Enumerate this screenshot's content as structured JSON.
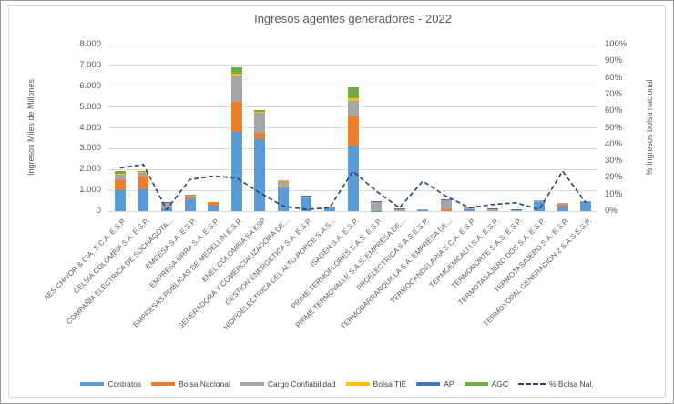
{
  "chart_data": {
    "type": "bar",
    "subtype": "stacked-column-with-line",
    "title": "Ingresos agentes generadores - 2022",
    "grid": "horizontal",
    "legend_position": "bottom",
    "y_left": {
      "label": "Ingresos Miles de Millones",
      "min": 0,
      "max": 8000,
      "ticks": [
        "8.000",
        "7.000",
        "6.000",
        "5.000",
        "4.000",
        "3.000",
        "2.000",
        "1.000",
        "0"
      ]
    },
    "y_right": {
      "label": "% Ingresos bolsa nacional",
      "min": 0,
      "max": 100,
      "ticks": [
        "100%",
        "90%",
        "80%",
        "70%",
        "60%",
        "50%",
        "40%",
        "30%",
        "20%",
        "10%",
        "0%"
      ]
    },
    "categories": [
      "AES CHIVOR & CIA. S.C.A. E.S.P.",
      "CELSIA COLOMBIA S.A. E.S.P.",
      "COMPAÑÍA ELÉCTRICA DE SOCHAGOTA...",
      "EMGESA S.A. E.S.P.",
      "EMPRESA URRA S.A. E.S.P.",
      "EMPRESAS PUBLICAS DE MEDELLIN E.S.P.",
      "ENEL COLOMBIA SA ESP",
      "GENERADORA Y COMERCIALIZADORA DE...",
      "GESTION ENERGETICA S.A. E.S.P.",
      "HIDROELECTRICA DEL ALTO PORCE S.A.S...",
      "ISAGEN S.A. E.S.P.",
      "PRIME TERMOFLORES S.A.S. E.S.P.",
      "PRIME TERMOVALLE S.A.S. EMPRESA DE...",
      "PROELECTRICA S.A.S E.S.P.",
      "TERMOBARRANQUILLA S.A. EMPRESA DE...",
      "TERMOCANDELARIA S.C.A. E.S.P.",
      "TERMOEMCALI I S.A. E.S.P.",
      "TERMONORTE S.A.S. E.S.P.",
      "TERMOTASAJERO DOS S.A. E.S.P.",
      "TERMOTASAJERO S.A. E.S.P.",
      "TERMOYOPAL GENERACION 2 S.A.S E.S.P."
    ],
    "series": [
      {
        "name": "Contratos",
        "color": "#5B9BD5",
        "values": [
          1.0,
          1.05,
          0.15,
          0.55,
          0.27,
          3.8,
          3.45,
          1.1,
          0.6,
          0.15,
          3.15,
          0.02,
          0,
          0.03,
          0,
          0.1,
          0,
          0,
          0.42,
          0.22,
          0.42
        ]
      },
      {
        "name": "Bolsa Nacional",
        "color": "#ED7D31",
        "values": [
          0.5,
          0.6,
          0,
          0.15,
          0.18,
          1.46,
          0.3,
          0.02,
          0,
          0.05,
          1.4,
          0,
          0,
          0,
          0.07,
          0,
          0,
          0,
          0,
          0.1,
          0
        ]
      },
      {
        "name": "Cargo Confiabilidad",
        "color": "#A5A5A5",
        "values": [
          0.26,
          0.2,
          0.28,
          0.05,
          0,
          1.25,
          0.95,
          0.33,
          0.1,
          0,
          0.75,
          0.43,
          0.1,
          0.06,
          0.48,
          0.12,
          0.11,
          0.04,
          0.1,
          0.06,
          0.05
        ]
      },
      {
        "name": "Bolsa TIE",
        "color": "#FFC000",
        "values": [
          0.05,
          0.05,
          0,
          0,
          0,
          0.07,
          0.08,
          0.04,
          0,
          0,
          0.1,
          0,
          0,
          0,
          0,
          0,
          0,
          0,
          0,
          0,
          0
        ]
      },
      {
        "name": "AP",
        "color": "#4472C4",
        "values": [
          0,
          0,
          0.02,
          0,
          0,
          0,
          0,
          0,
          0.03,
          0,
          0,
          0.04,
          0.02,
          0,
          0.03,
          0,
          0.01,
          0.03,
          0,
          0,
          0
        ]
      },
      {
        "name": "AGC",
        "color": "#70AD47",
        "values": [
          0.1,
          0.02,
          0,
          0.05,
          0,
          0.32,
          0.08,
          0,
          0,
          0,
          0.55,
          0,
          0,
          0,
          0,
          0,
          0,
          0,
          0,
          0,
          0
        ]
      }
    ],
    "line_series": {
      "name": "% Bolsa Nal.",
      "color": "#264478",
      "style": "dashed",
      "axis": "right",
      "values_pct": [
        26,
        28,
        1,
        19,
        21,
        20,
        11,
        3,
        1,
        2,
        24,
        12,
        2,
        18,
        9,
        2,
        4,
        5,
        1,
        24,
        5
      ]
    }
  }
}
